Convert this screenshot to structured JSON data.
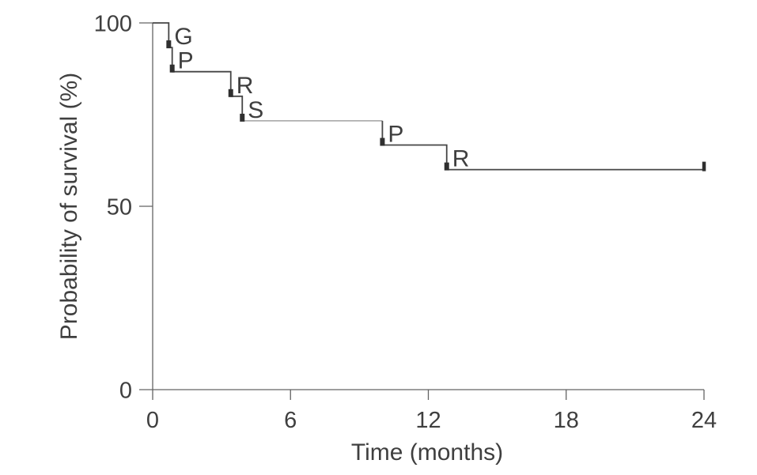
{
  "chart_data": {
    "type": "line",
    "subtype": "kaplan-meier-step-curve",
    "title": "",
    "xlabel": "Time (months)",
    "ylabel": "Probability of survival (%)",
    "xlim": [
      0,
      24
    ],
    "ylim": [
      0,
      100
    ],
    "x_ticks": [
      0,
      6,
      12,
      18,
      24
    ],
    "y_ticks": [
      100,
      50,
      0
    ],
    "grid": false,
    "legend": false,
    "series": [
      {
        "name": "survival",
        "start": {
          "month": 0,
          "survival_pct": 100
        },
        "events": [
          {
            "month": 0.7,
            "survival_pct_after": 93.3,
            "label": "G"
          },
          {
            "month": 0.85,
            "survival_pct_after": 86.7,
            "label": "P"
          },
          {
            "month": 3.4,
            "survival_pct_after": 80.0,
            "label": "R"
          },
          {
            "month": 3.9,
            "survival_pct_after": 73.3,
            "label": "S"
          },
          {
            "month": 10.0,
            "survival_pct_after": 66.7,
            "label": "P"
          },
          {
            "month": 12.8,
            "survival_pct_after": 60.0,
            "label": "R"
          }
        ],
        "censor_tick_month": 24,
        "final_survival_pct": 60
      }
    ],
    "light_segment": {
      "from_month": 3.9,
      "to_month": 10.0
    }
  },
  "colors": {
    "background": "#ffffff",
    "axis": "#636363",
    "text": "#3f3f3f",
    "curve": "#454545",
    "curve_light": "#8f8f8f",
    "event_mark": "#2f2f2f"
  }
}
